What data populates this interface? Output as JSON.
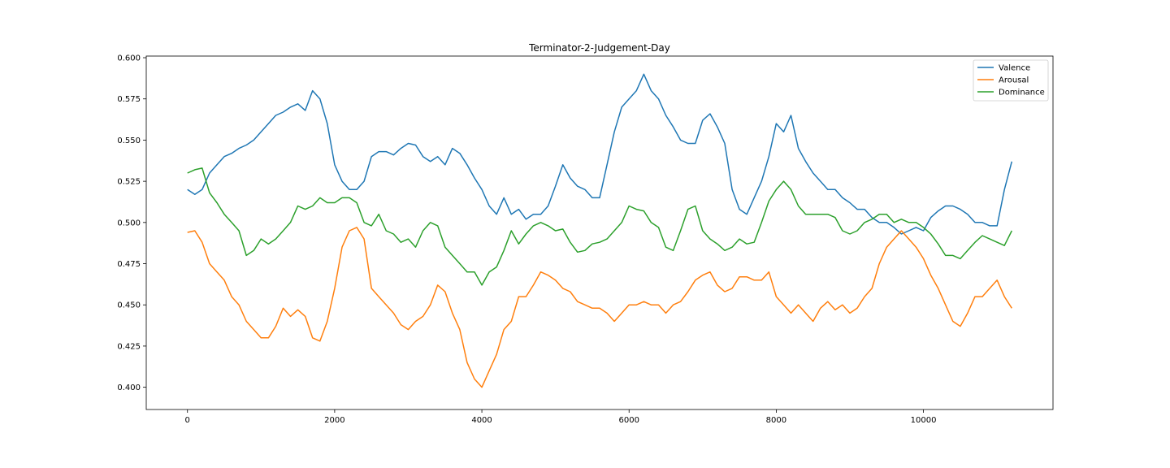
{
  "chart_data": {
    "type": "line",
    "title": "Terminator-2-Judgement-Day",
    "xlabel": "",
    "ylabel": "",
    "xlim": [
      -560,
      11760
    ],
    "ylim": [
      0.3865,
      0.601
    ],
    "x_ticks": [
      0,
      2000,
      4000,
      6000,
      8000,
      10000
    ],
    "x_tick_labels": [
      "0",
      "2000",
      "4000",
      "6000",
      "8000",
      "10000"
    ],
    "y_ticks": [
      0.4,
      0.425,
      0.45,
      0.475,
      0.5,
      0.525,
      0.55,
      0.575,
      0.6
    ],
    "y_tick_labels": [
      "0.400",
      "0.425",
      "0.450",
      "0.475",
      "0.500",
      "0.525",
      "0.550",
      "0.575",
      "0.600"
    ],
    "grid": false,
    "legend": {
      "position": "top-right"
    },
    "series": [
      {
        "name": "Valence",
        "color": "#1f77b4",
        "x": [
          0,
          100,
          200,
          300,
          400,
          500,
          600,
          700,
          800,
          900,
          1000,
          1100,
          1200,
          1300,
          1400,
          1500,
          1600,
          1700,
          1800,
          1900,
          2000,
          2100,
          2200,
          2300,
          2400,
          2500,
          2600,
          2700,
          2800,
          2900,
          3000,
          3100,
          3200,
          3300,
          3400,
          3500,
          3600,
          3700,
          3800,
          3900,
          4000,
          4100,
          4200,
          4300,
          4400,
          4500,
          4600,
          4700,
          4800,
          4900,
          5000,
          5100,
          5200,
          5300,
          5400,
          5500,
          5600,
          5700,
          5800,
          5900,
          6000,
          6100,
          6200,
          6300,
          6400,
          6500,
          6600,
          6700,
          6800,
          6900,
          7000,
          7100,
          7200,
          7300,
          7400,
          7500,
          7600,
          7700,
          7800,
          7900,
          8000,
          8100,
          8200,
          8300,
          8400,
          8500,
          8600,
          8700,
          8800,
          8900,
          9000,
          9100,
          9200,
          9300,
          9400,
          9500,
          9600,
          9700,
          9800,
          9900,
          10000,
          10100,
          10200,
          10300,
          10400,
          10500,
          10600,
          10700,
          10800,
          10900,
          11000,
          11100,
          11200
        ],
        "values": [
          0.52,
          0.517,
          0.52,
          0.53,
          0.535,
          0.54,
          0.542,
          0.545,
          0.547,
          0.55,
          0.555,
          0.56,
          0.565,
          0.567,
          0.57,
          0.572,
          0.568,
          0.58,
          0.575,
          0.56,
          0.535,
          0.525,
          0.52,
          0.52,
          0.525,
          0.54,
          0.543,
          0.543,
          0.541,
          0.545,
          0.548,
          0.547,
          0.54,
          0.537,
          0.54,
          0.535,
          0.545,
          0.542,
          0.535,
          0.527,
          0.52,
          0.51,
          0.505,
          0.515,
          0.505,
          0.508,
          0.502,
          0.505,
          0.505,
          0.51,
          0.522,
          0.535,
          0.527,
          0.522,
          0.52,
          0.515,
          0.515,
          0.535,
          0.555,
          0.57,
          0.575,
          0.58,
          0.59,
          0.58,
          0.575,
          0.565,
          0.558,
          0.55,
          0.548,
          0.548,
          0.562,
          0.566,
          0.558,
          0.548,
          0.52,
          0.508,
          0.505,
          0.515,
          0.525,
          0.54,
          0.56,
          0.555,
          0.565,
          0.545,
          0.537,
          0.53,
          0.525,
          0.52,
          0.52,
          0.515,
          0.512,
          0.508,
          0.508,
          0.503,
          0.5,
          0.5,
          0.497,
          0.493,
          0.495,
          0.497,
          0.495,
          0.503,
          0.507,
          0.51,
          0.51,
          0.508,
          0.505,
          0.5,
          0.5,
          0.498,
          0.498,
          0.52,
          0.537
        ]
      },
      {
        "name": "Arousal",
        "color": "#ff7f0e",
        "x": [
          0,
          100,
          200,
          300,
          400,
          500,
          600,
          700,
          800,
          900,
          1000,
          1100,
          1200,
          1300,
          1400,
          1500,
          1600,
          1700,
          1800,
          1900,
          2000,
          2100,
          2200,
          2300,
          2400,
          2500,
          2600,
          2700,
          2800,
          2900,
          3000,
          3100,
          3200,
          3300,
          3400,
          3500,
          3600,
          3700,
          3800,
          3900,
          4000,
          4100,
          4200,
          4300,
          4400,
          4500,
          4600,
          4700,
          4800,
          4900,
          5000,
          5100,
          5200,
          5300,
          5400,
          5500,
          5600,
          5700,
          5800,
          5900,
          6000,
          6100,
          6200,
          6300,
          6400,
          6500,
          6600,
          6700,
          6800,
          6900,
          7000,
          7100,
          7200,
          7300,
          7400,
          7500,
          7600,
          7700,
          7800,
          7900,
          8000,
          8100,
          8200,
          8300,
          8400,
          8500,
          8600,
          8700,
          8800,
          8900,
          9000,
          9100,
          9200,
          9300,
          9400,
          9500,
          9600,
          9700,
          9800,
          9900,
          10000,
          10100,
          10200,
          10300,
          10400,
          10500,
          10600,
          10700,
          10800,
          10900,
          11000,
          11100,
          11200
        ],
        "values": [
          0.494,
          0.495,
          0.488,
          0.475,
          0.47,
          0.465,
          0.455,
          0.45,
          0.44,
          0.435,
          0.43,
          0.43,
          0.437,
          0.448,
          0.443,
          0.447,
          0.443,
          0.43,
          0.428,
          0.44,
          0.46,
          0.485,
          0.495,
          0.497,
          0.49,
          0.46,
          0.455,
          0.45,
          0.445,
          0.438,
          0.435,
          0.44,
          0.443,
          0.45,
          0.462,
          0.458,
          0.445,
          0.435,
          0.415,
          0.405,
          0.4,
          0.41,
          0.42,
          0.435,
          0.44,
          0.455,
          0.455,
          0.462,
          0.47,
          0.468,
          0.465,
          0.46,
          0.458,
          0.452,
          0.45,
          0.448,
          0.448,
          0.445,
          0.44,
          0.445,
          0.45,
          0.45,
          0.452,
          0.45,
          0.45,
          0.445,
          0.45,
          0.452,
          0.458,
          0.465,
          0.468,
          0.47,
          0.462,
          0.458,
          0.46,
          0.467,
          0.467,
          0.465,
          0.465,
          0.47,
          0.455,
          0.45,
          0.445,
          0.45,
          0.445,
          0.44,
          0.448,
          0.452,
          0.447,
          0.45,
          0.445,
          0.448,
          0.455,
          0.46,
          0.475,
          0.485,
          0.49,
          0.495,
          0.49,
          0.485,
          0.478,
          0.468,
          0.46,
          0.45,
          0.44,
          0.437,
          0.445,
          0.455,
          0.455,
          0.46,
          0.465,
          0.455,
          0.448
        ]
      },
      {
        "name": "Dominance",
        "color": "#2ca02c",
        "x": [
          0,
          100,
          200,
          300,
          400,
          500,
          600,
          700,
          800,
          900,
          1000,
          1100,
          1200,
          1300,
          1400,
          1500,
          1600,
          1700,
          1800,
          1900,
          2000,
          2100,
          2200,
          2300,
          2400,
          2500,
          2600,
          2700,
          2800,
          2900,
          3000,
          3100,
          3200,
          3300,
          3400,
          3500,
          3600,
          3700,
          3800,
          3900,
          4000,
          4100,
          4200,
          4300,
          4400,
          4500,
          4600,
          4700,
          4800,
          4900,
          5000,
          5100,
          5200,
          5300,
          5400,
          5500,
          5600,
          5700,
          5800,
          5900,
          6000,
          6100,
          6200,
          6300,
          6400,
          6500,
          6600,
          6700,
          6800,
          6900,
          7000,
          7100,
          7200,
          7300,
          7400,
          7500,
          7600,
          7700,
          7800,
          7900,
          8000,
          8100,
          8200,
          8300,
          8400,
          8500,
          8600,
          8700,
          8800,
          8900,
          9000,
          9100,
          9200,
          9300,
          9400,
          9500,
          9600,
          9700,
          9800,
          9900,
          10000,
          10100,
          10200,
          10300,
          10400,
          10500,
          10600,
          10700,
          10800,
          10900,
          11000,
          11100,
          11200
        ],
        "values": [
          0.53,
          0.532,
          0.533,
          0.518,
          0.512,
          0.505,
          0.5,
          0.495,
          0.48,
          0.483,
          0.49,
          0.487,
          0.49,
          0.495,
          0.5,
          0.51,
          0.508,
          0.51,
          0.515,
          0.512,
          0.512,
          0.515,
          0.515,
          0.512,
          0.5,
          0.498,
          0.505,
          0.495,
          0.493,
          0.488,
          0.49,
          0.485,
          0.495,
          0.5,
          0.498,
          0.485,
          0.48,
          0.475,
          0.47,
          0.47,
          0.462,
          0.47,
          0.473,
          0.483,
          0.495,
          0.487,
          0.493,
          0.498,
          0.5,
          0.498,
          0.495,
          0.496,
          0.488,
          0.482,
          0.483,
          0.487,
          0.488,
          0.49,
          0.495,
          0.5,
          0.51,
          0.508,
          0.507,
          0.5,
          0.497,
          0.485,
          0.483,
          0.495,
          0.508,
          0.51,
          0.495,
          0.49,
          0.487,
          0.483,
          0.485,
          0.49,
          0.487,
          0.488,
          0.5,
          0.513,
          0.52,
          0.525,
          0.52,
          0.51,
          0.505,
          0.505,
          0.505,
          0.505,
          0.503,
          0.495,
          0.493,
          0.495,
          0.5,
          0.502,
          0.505,
          0.505,
          0.5,
          0.502,
          0.5,
          0.5,
          0.497,
          0.493,
          0.487,
          0.48,
          0.48,
          0.478,
          0.483,
          0.488,
          0.492,
          0.49,
          0.488,
          0.486,
          0.495
        ]
      }
    ]
  }
}
